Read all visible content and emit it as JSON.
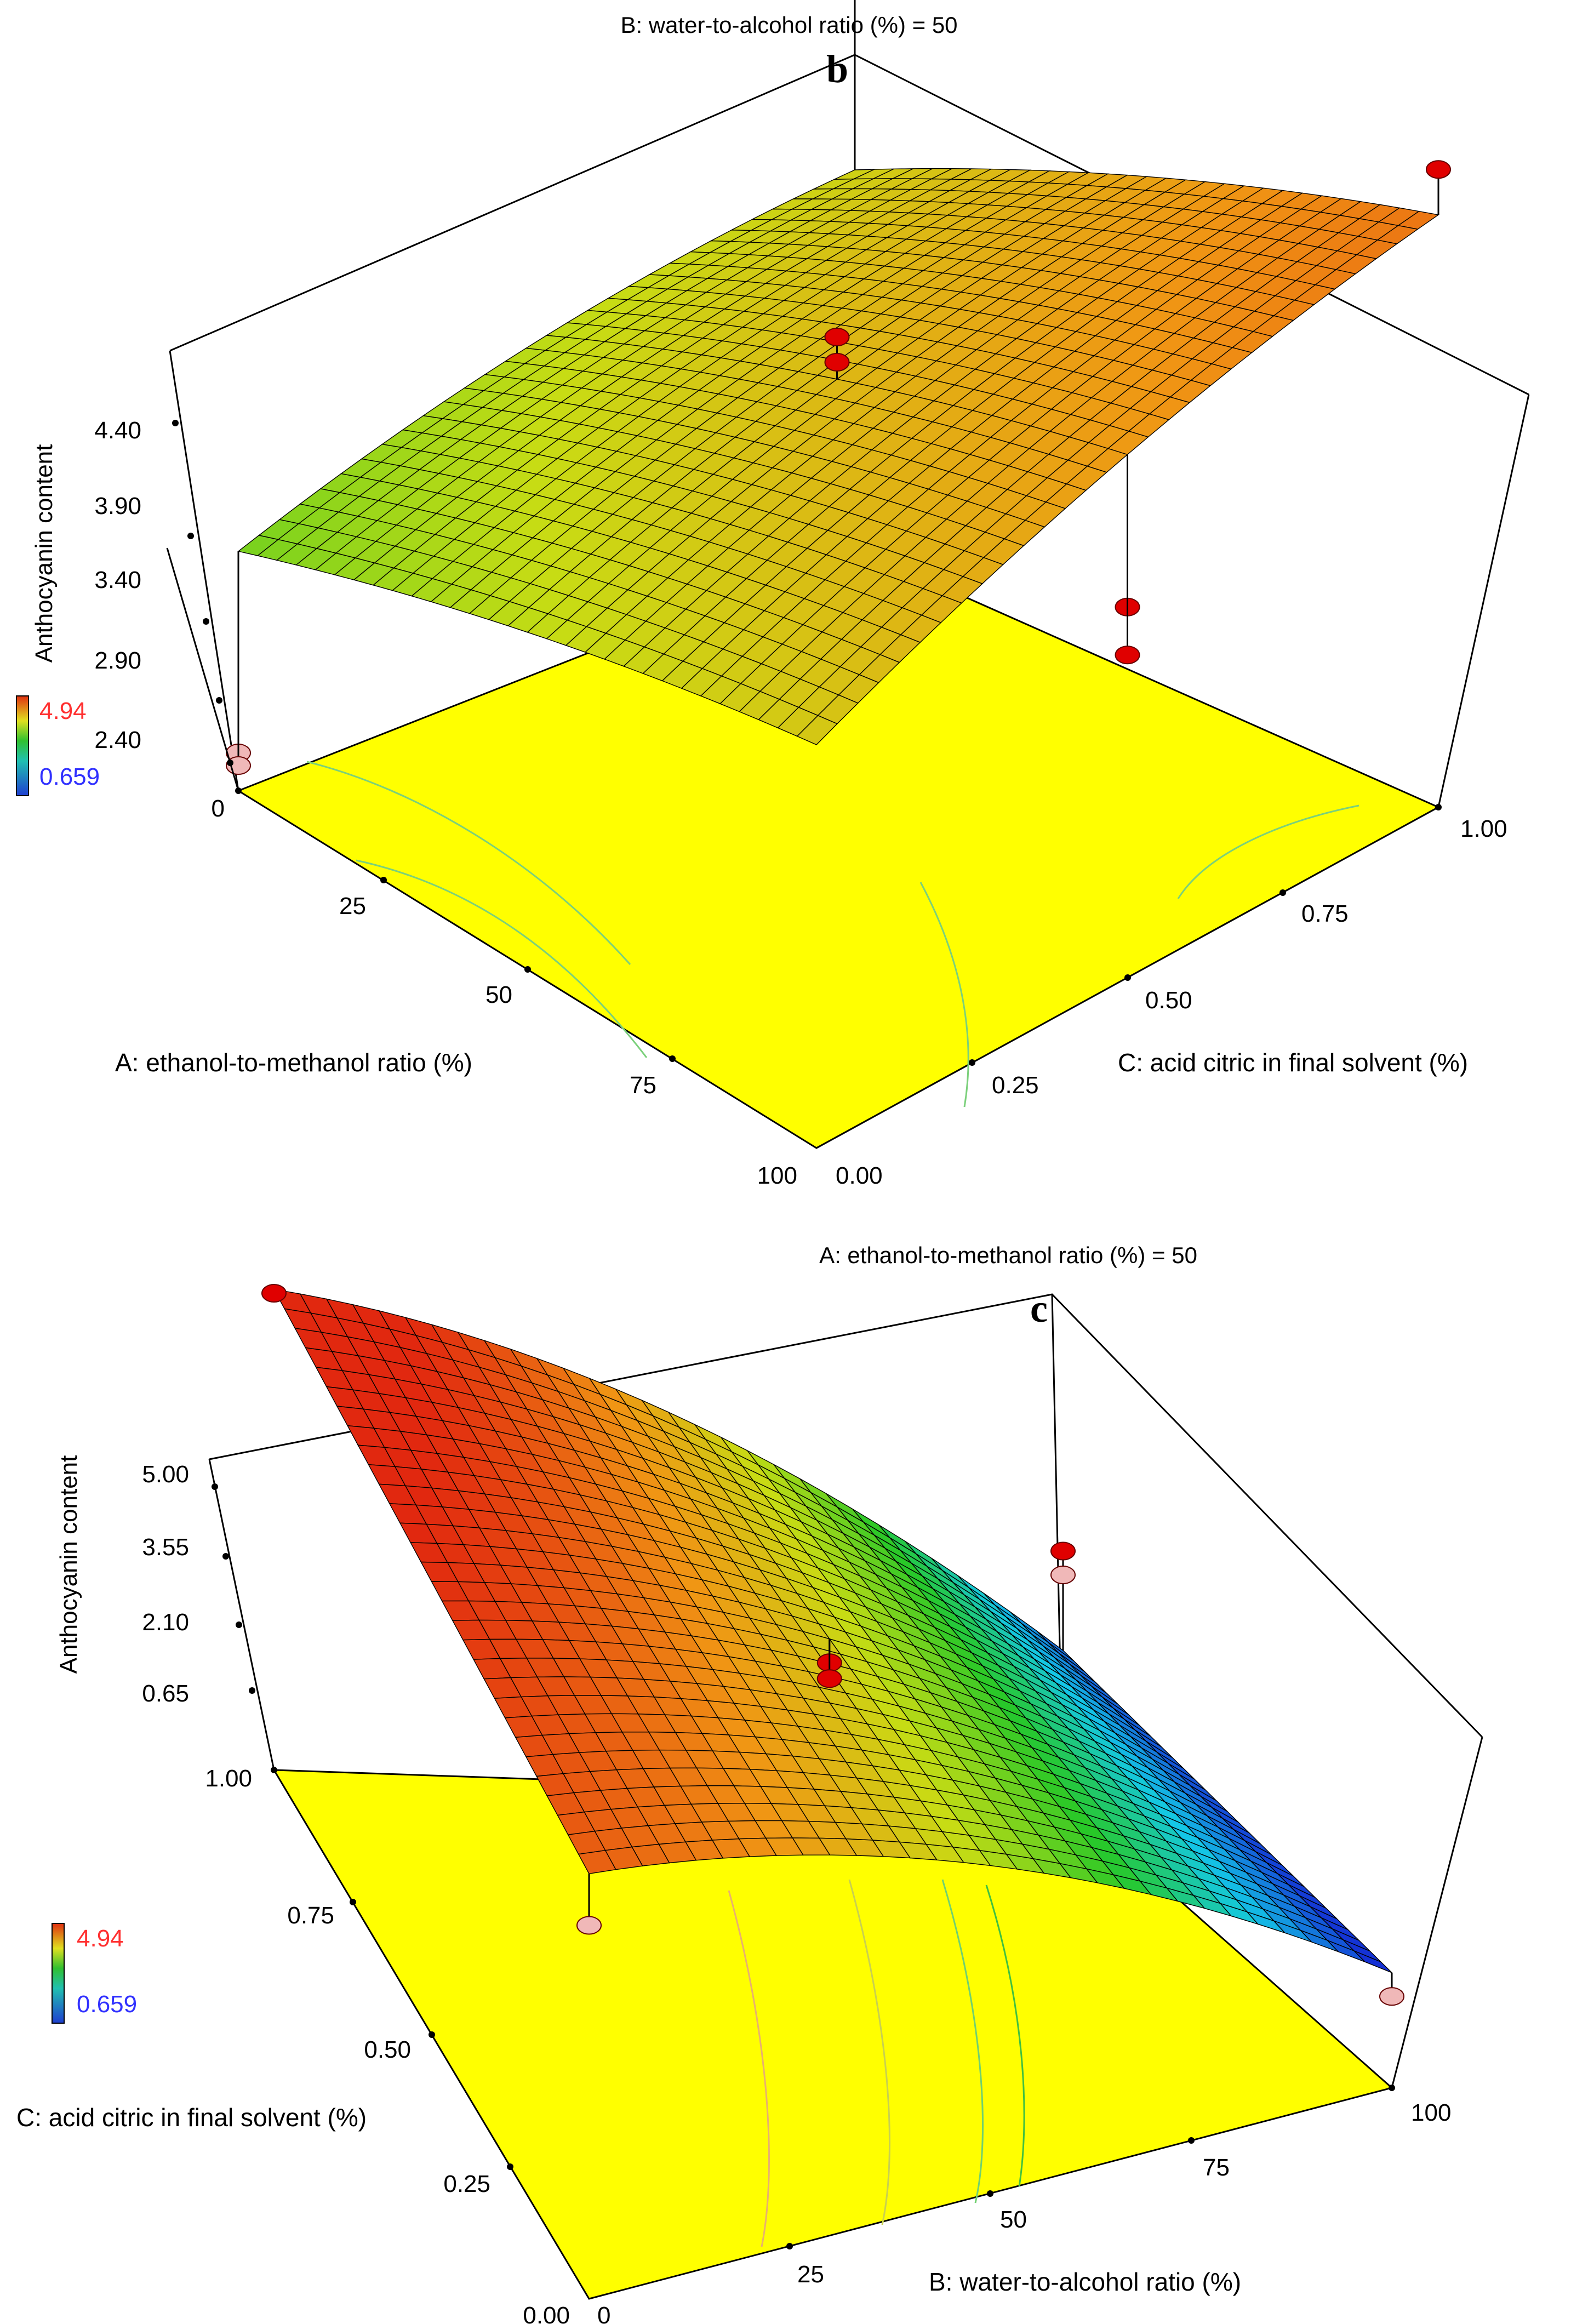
{
  "chart_data": [
    {
      "type": "surface",
      "panel_label": "b",
      "title": "B: water-to-alcohol ratio (%) = 50",
      "zlabel": "Anthocyanin content",
      "xlabel": "A: ethanol-to-methanol ratio (%)",
      "ylabel": "C: acid citric in final solvent (%)",
      "x_ticks": [
        "0",
        "25",
        "50",
        "75",
        "100"
      ],
      "y_ticks": [
        "0.00",
        "0.25",
        "0.50",
        "0.75",
        "1.00"
      ],
      "z_ticks": [
        "2.40",
        "2.90",
        "3.40",
        "3.90",
        "4.40"
      ],
      "xlim": [
        0,
        100
      ],
      "ylim": [
        0,
        1
      ],
      "zlim": [
        2.4,
        4.4
      ],
      "colorbar": {
        "min": "0.659",
        "max": "4.94",
        "min_color": "#3030ff",
        "max_color": "#ff3030"
      },
      "design_points": [
        {
          "x": 0,
          "y": 0,
          "z": 2.2,
          "position": "below"
        },
        {
          "x": 0,
          "y": 0,
          "z": 2.15,
          "position": "below"
        },
        {
          "x": 0,
          "y": 1,
          "z": 4.3,
          "position": "above"
        },
        {
          "x": 50,
          "y": 0.5,
          "z": 3.98,
          "position": "above"
        },
        {
          "x": 50,
          "y": 0.5,
          "z": 3.88,
          "position": "above"
        },
        {
          "x": 100,
          "y": 1,
          "z": 4.58,
          "position": "above"
        },
        {
          "x": 100,
          "y": 0.5,
          "z": 3.52,
          "position": "above"
        },
        {
          "x": 100,
          "y": 0.5,
          "z": 3.33,
          "position": "above"
        }
      ]
    },
    {
      "type": "surface",
      "panel_label": "c",
      "title": "A: ethanol-to-methanol ratio (%) = 50",
      "zlabel": "Anthocyanin content",
      "xlabel": "B: water-to-alcohol ratio (%)",
      "ylabel": "C: acid citric in final solvent (%)",
      "x_ticks": [
        "0",
        "25",
        "50",
        "75",
        "100"
      ],
      "y_ticks": [
        "0.00",
        "0.25",
        "0.50",
        "0.75",
        "1.00"
      ],
      "z_ticks": [
        "0.65",
        "2.10",
        "3.55",
        "5.00"
      ],
      "xlim": [
        0,
        100
      ],
      "ylim": [
        0,
        1
      ],
      "zlim": [
        0.65,
        5.0
      ],
      "colorbar": {
        "min": "0.659",
        "max": "4.94",
        "min_color": "#3030ff",
        "max_color": "#ff3030"
      },
      "design_points": [
        {
          "x": 0,
          "y": 0,
          "z": 3.9,
          "position": "below"
        },
        {
          "x": 0,
          "y": 1,
          "z": 5.2,
          "position": "above"
        },
        {
          "x": 50,
          "y": 0.5,
          "z": 3.3,
          "position": "above"
        },
        {
          "x": 50,
          "y": 0.5,
          "z": 3.1,
          "position": "above"
        },
        {
          "x": 100,
          "y": 0,
          "z": 0.35,
          "position": "below"
        },
        {
          "x": 100,
          "y": 1,
          "z": 2.3,
          "position": "above"
        },
        {
          "x": 100,
          "y": 1,
          "z": 2.0,
          "position": "below"
        }
      ]
    }
  ]
}
